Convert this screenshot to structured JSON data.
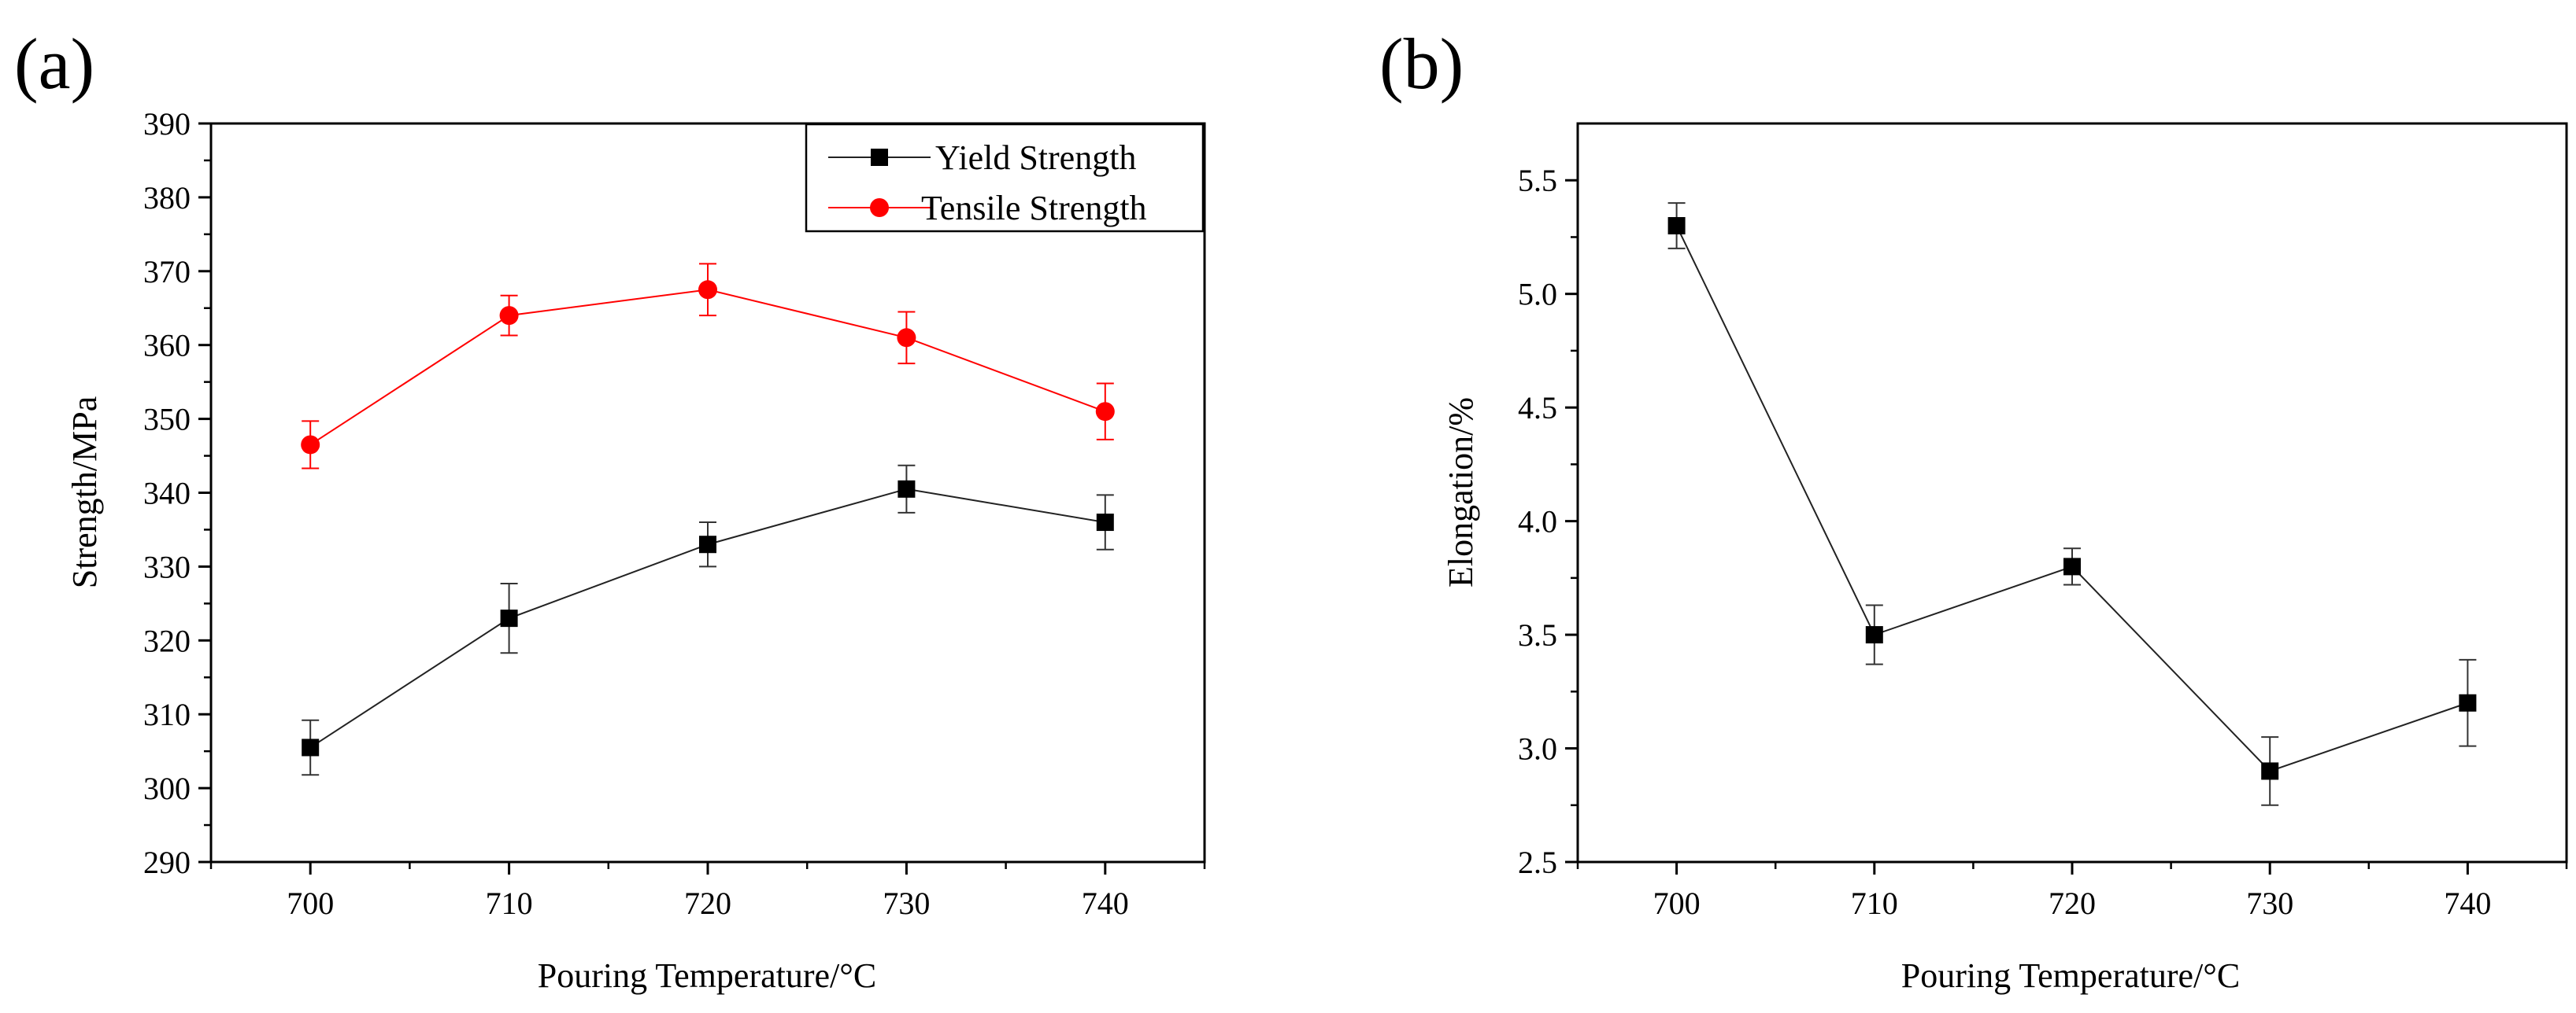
{
  "chart_data": [
    {
      "type": "line",
      "panel_label": "(a)",
      "xlabel": "Pouring Temperature/°C",
      "ylabel": "Strength/MPa",
      "x": [
        700,
        710,
        720,
        730,
        740
      ],
      "xlim": [
        695,
        745
      ],
      "ylim": [
        290,
        390
      ],
      "xticks": [
        700,
        710,
        720,
        730,
        740
      ],
      "yticks": [
        290,
        300,
        310,
        320,
        330,
        340,
        350,
        360,
        370,
        380,
        390
      ],
      "x_tick_labels": [
        "700",
        "710",
        "720",
        "730",
        "740"
      ],
      "y_tick_labels": [
        "290",
        "300",
        "310",
        "320",
        "330",
        "340",
        "350",
        "360",
        "370",
        "380",
        "390"
      ],
      "legend_position": "top-right",
      "grid": false,
      "series": [
        {
          "name": "Yield Strength",
          "color": "#222222",
          "marker": "square",
          "values": [
            305.5,
            323,
            333,
            340.5,
            336
          ],
          "errors": [
            3.7,
            4.7,
            3.0,
            3.2,
            3.7
          ]
        },
        {
          "name": "Tensile Strength",
          "color": "#ff0000",
          "marker": "circle",
          "values": [
            346.5,
            364,
            367.5,
            361,
            351
          ],
          "errors": [
            3.2,
            2.7,
            3.5,
            3.5,
            3.8
          ]
        }
      ]
    },
    {
      "type": "line",
      "panel_label": "(b)",
      "xlabel": "Pouring Temperature/°C",
      "ylabel": "Elongation/%",
      "x": [
        700,
        710,
        720,
        730,
        740
      ],
      "xlim": [
        695,
        745
      ],
      "ylim": [
        2.5,
        5.75
      ],
      "xticks": [
        700,
        710,
        720,
        730,
        740
      ],
      "yticks": [
        2.5,
        3.0,
        3.5,
        4.0,
        4.5,
        5.0,
        5.5
      ],
      "x_tick_labels": [
        "700",
        "710",
        "720",
        "730",
        "740"
      ],
      "y_tick_labels": [
        "2.5",
        "3.0",
        "3.5",
        "4.0",
        "4.5",
        "5.0",
        "5.5"
      ],
      "grid": false,
      "series": [
        {
          "name": "Elongation",
          "color": "#222222",
          "marker": "square",
          "values": [
            5.3,
            3.5,
            3.8,
            2.9,
            3.2
          ],
          "errors": [
            0.1,
            0.13,
            0.08,
            0.15,
            0.19
          ]
        }
      ]
    }
  ]
}
